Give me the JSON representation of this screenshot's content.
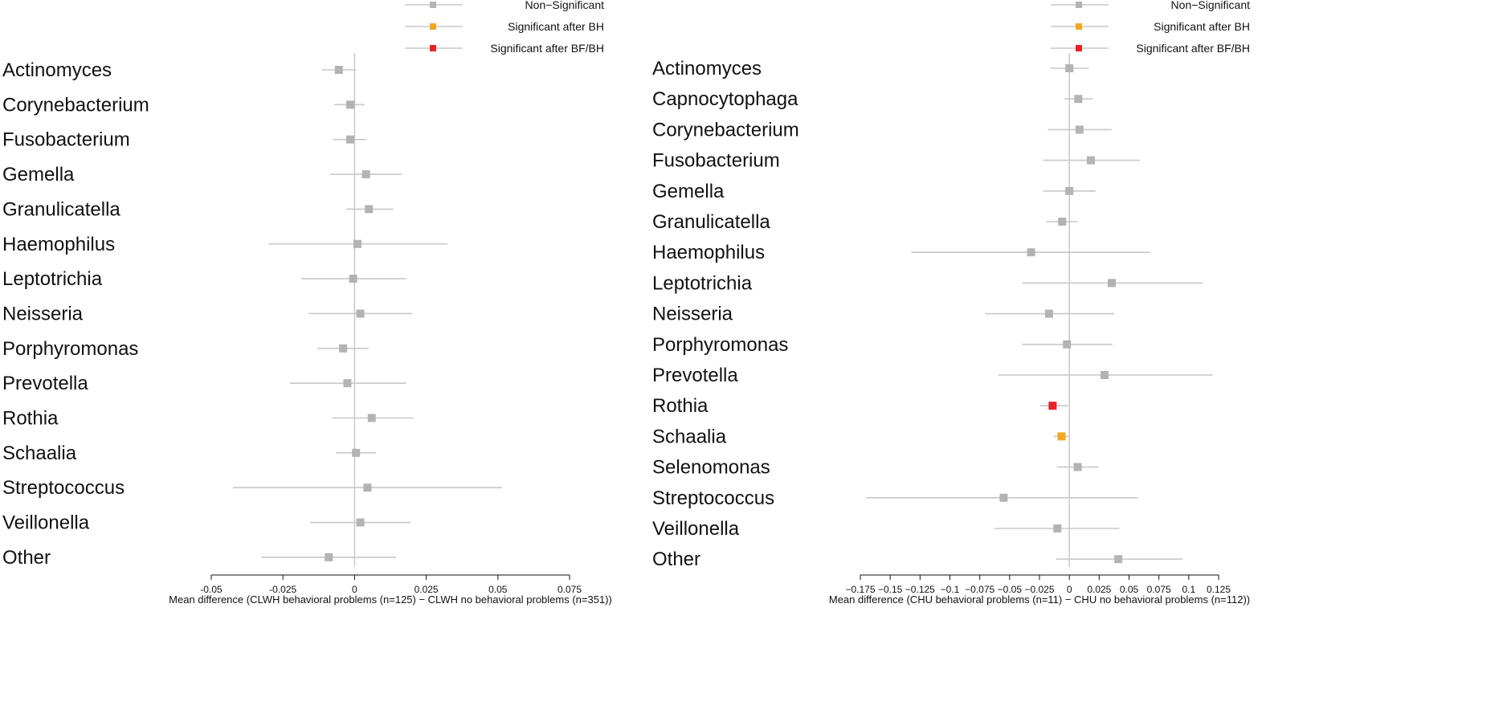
{
  "colors": {
    "non_significant": "#b3b3b3",
    "significant_bh": "#f5a623",
    "significant_bf_bh": "#e8212a",
    "whisker": "#c8c8c8",
    "zero_line": "#c8c8c8",
    "axis": "#111111"
  },
  "legend": [
    {
      "label": "Non−Significant",
      "status": "non_significant"
    },
    {
      "label": "Significant after BH",
      "status": "significant_bh"
    },
    {
      "label": "Significant after BF/BH",
      "status": "significant_bf_bh"
    }
  ],
  "chart_data": [
    {
      "type": "forest",
      "xlabel": "Mean difference (CLWH behavioral problems (n=125) − CLWH no behavioral problems (n=351))",
      "xlim": [
        -0.05,
        0.075
      ],
      "xticks": [
        -0.05,
        -0.025,
        0,
        0.025,
        0.05,
        0.075
      ],
      "xtick_labels": [
        "-0.05",
        "-0.025",
        "0",
        "0.025",
        "0.05",
        "0.075"
      ],
      "rows": [
        {
          "taxon": "Actinomyces",
          "mean": -0.0055,
          "lo": -0.0115,
          "hi": 0.0005,
          "status": "non_significant"
        },
        {
          "taxon": "Corynebacterium",
          "mean": -0.0015,
          "lo": -0.007,
          "hi": 0.0035,
          "status": "non_significant"
        },
        {
          "taxon": "Fusobacterium",
          "mean": -0.0015,
          "lo": -0.0075,
          "hi": 0.004,
          "status": "non_significant"
        },
        {
          "taxon": "Gemella",
          "mean": 0.004,
          "lo": -0.0085,
          "hi": 0.0165,
          "status": "non_significant"
        },
        {
          "taxon": "Granulicatella",
          "mean": 0.005,
          "lo": -0.003,
          "hi": 0.0135,
          "status": "non_significant"
        },
        {
          "taxon": "Haemophilus",
          "mean": 0.001,
          "lo": -0.03,
          "hi": 0.0325,
          "status": "non_significant"
        },
        {
          "taxon": "Leptotrichia",
          "mean": -0.0005,
          "lo": -0.0185,
          "hi": 0.018,
          "status": "non_significant"
        },
        {
          "taxon": "Neisseria",
          "mean": 0.002,
          "lo": -0.016,
          "hi": 0.02,
          "status": "non_significant"
        },
        {
          "taxon": "Porphyromonas",
          "mean": -0.004,
          "lo": -0.013,
          "hi": 0.005,
          "status": "non_significant"
        },
        {
          "taxon": "Prevotella",
          "mean": -0.0025,
          "lo": -0.0225,
          "hi": 0.018,
          "status": "non_significant"
        },
        {
          "taxon": "Rothia",
          "mean": 0.006,
          "lo": -0.008,
          "hi": 0.0205,
          "status": "non_significant"
        },
        {
          "taxon": "Schaalia",
          "mean": 0.0005,
          "lo": -0.0065,
          "hi": 0.0075,
          "status": "non_significant"
        },
        {
          "taxon": "Streptococcus",
          "mean": 0.0045,
          "lo": -0.0425,
          "hi": 0.0515,
          "status": "non_significant"
        },
        {
          "taxon": "Veillonella",
          "mean": 0.002,
          "lo": -0.0155,
          "hi": 0.0195,
          "status": "non_significant"
        },
        {
          "taxon": "Other",
          "mean": -0.009,
          "lo": -0.0325,
          "hi": 0.0145,
          "status": "non_significant"
        }
      ]
    },
    {
      "type": "forest",
      "xlabel": "Mean difference (CHU behavioral problems (n=11) − CHU no behavioral problems (n=112))",
      "xlim": [
        -0.175,
        0.125
      ],
      "xticks": [
        -0.175,
        -0.15,
        -0.125,
        -0.1,
        -0.075,
        -0.05,
        -0.025,
        0,
        0.025,
        0.05,
        0.075,
        0.1,
        0.125
      ],
      "xtick_labels": [
        "−0.175",
        "−0.15",
        "−0.125",
        "−0.1",
        "−0.075",
        "−0.05",
        "−0.025",
        "0",
        "0.025",
        "0.05",
        "0.075",
        "0.1",
        "0.125"
      ],
      "rows": [
        {
          "taxon": "Actinomyces",
          "mean": 0.0,
          "lo": -0.0155,
          "hi": 0.0165,
          "status": "non_significant"
        },
        {
          "taxon": "Capnocytophaga",
          "mean": 0.0075,
          "lo": -0.004,
          "hi": 0.0195,
          "status": "non_significant"
        },
        {
          "taxon": "Corynebacterium",
          "mean": 0.0085,
          "lo": -0.018,
          "hi": 0.0355,
          "status": "non_significant"
        },
        {
          "taxon": "Fusobacterium",
          "mean": 0.018,
          "lo": -0.022,
          "hi": 0.059,
          "status": "non_significant"
        },
        {
          "taxon": "Gemella",
          "mean": 0.0,
          "lo": -0.022,
          "hi": 0.022,
          "status": "non_significant"
        },
        {
          "taxon": "Granulicatella",
          "mean": -0.006,
          "lo": -0.0195,
          "hi": 0.007,
          "status": "non_significant"
        },
        {
          "taxon": "Haemophilus",
          "mean": -0.032,
          "lo": -0.1325,
          "hi": 0.0675,
          "status": "non_significant"
        },
        {
          "taxon": "Leptotrichia",
          "mean": 0.0355,
          "lo": -0.0395,
          "hi": 0.112,
          "status": "non_significant"
        },
        {
          "taxon": "Neisseria",
          "mean": -0.017,
          "lo": -0.0705,
          "hi": 0.0375,
          "status": "non_significant"
        },
        {
          "taxon": "Porphyromonas",
          "mean": -0.002,
          "lo": -0.0395,
          "hi": 0.036,
          "status": "non_significant"
        },
        {
          "taxon": "Prevotella",
          "mean": 0.0295,
          "lo": -0.0595,
          "hi": 0.12,
          "status": "non_significant"
        },
        {
          "taxon": "Rothia",
          "mean": -0.014,
          "lo": -0.0245,
          "hi": -0.001,
          "status": "significant_bf_bh"
        },
        {
          "taxon": "Schaalia",
          "mean": -0.0065,
          "lo": -0.013,
          "hi": -0.0005,
          "status": "significant_bh"
        },
        {
          "taxon": "Selenomonas",
          "mean": 0.007,
          "lo": -0.0105,
          "hi": 0.0245,
          "status": "non_significant"
        },
        {
          "taxon": "Streptococcus",
          "mean": -0.055,
          "lo": -0.17,
          "hi": 0.0575,
          "status": "non_significant"
        },
        {
          "taxon": "Veillonella",
          "mean": -0.01,
          "lo": -0.063,
          "hi": 0.042,
          "status": "non_significant"
        },
        {
          "taxon": "Other",
          "mean": 0.041,
          "lo": -0.011,
          "hi": 0.095,
          "status": "non_significant"
        }
      ]
    }
  ]
}
